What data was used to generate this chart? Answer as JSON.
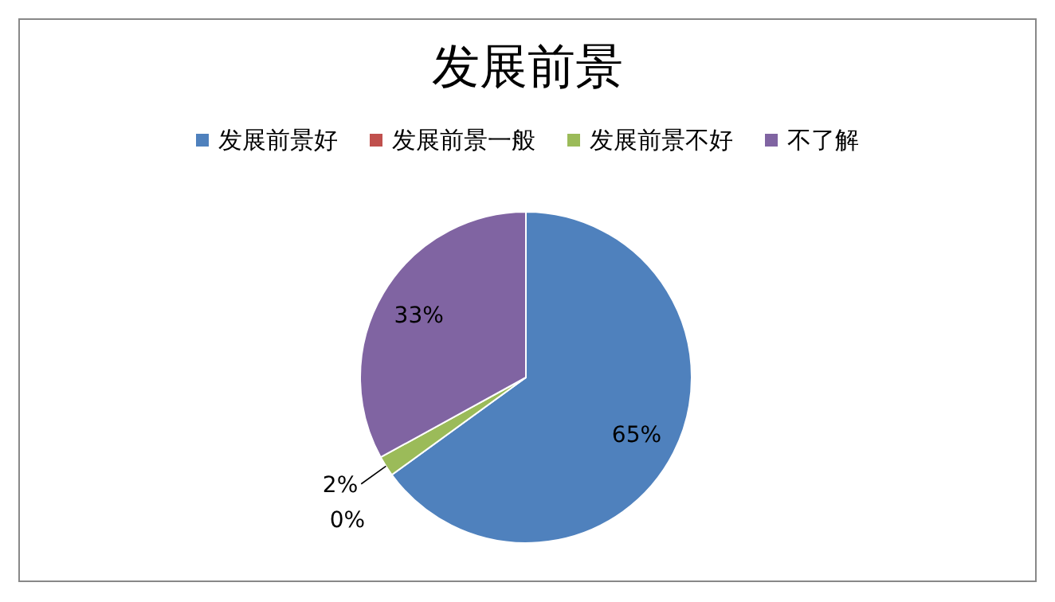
{
  "chart_data": {
    "type": "pie",
    "title": "发展前景",
    "categories": [
      "发展前景好",
      "发展前景一般",
      "发展前景不好",
      "不了解"
    ],
    "values": [
      65,
      0,
      2,
      33
    ],
    "value_labels": [
      "65%",
      "0%",
      "2%",
      "33%"
    ],
    "colors": [
      "#4f81bd",
      "#c0504d",
      "#9bbb59",
      "#8064a2"
    ],
    "legend": "top"
  }
}
